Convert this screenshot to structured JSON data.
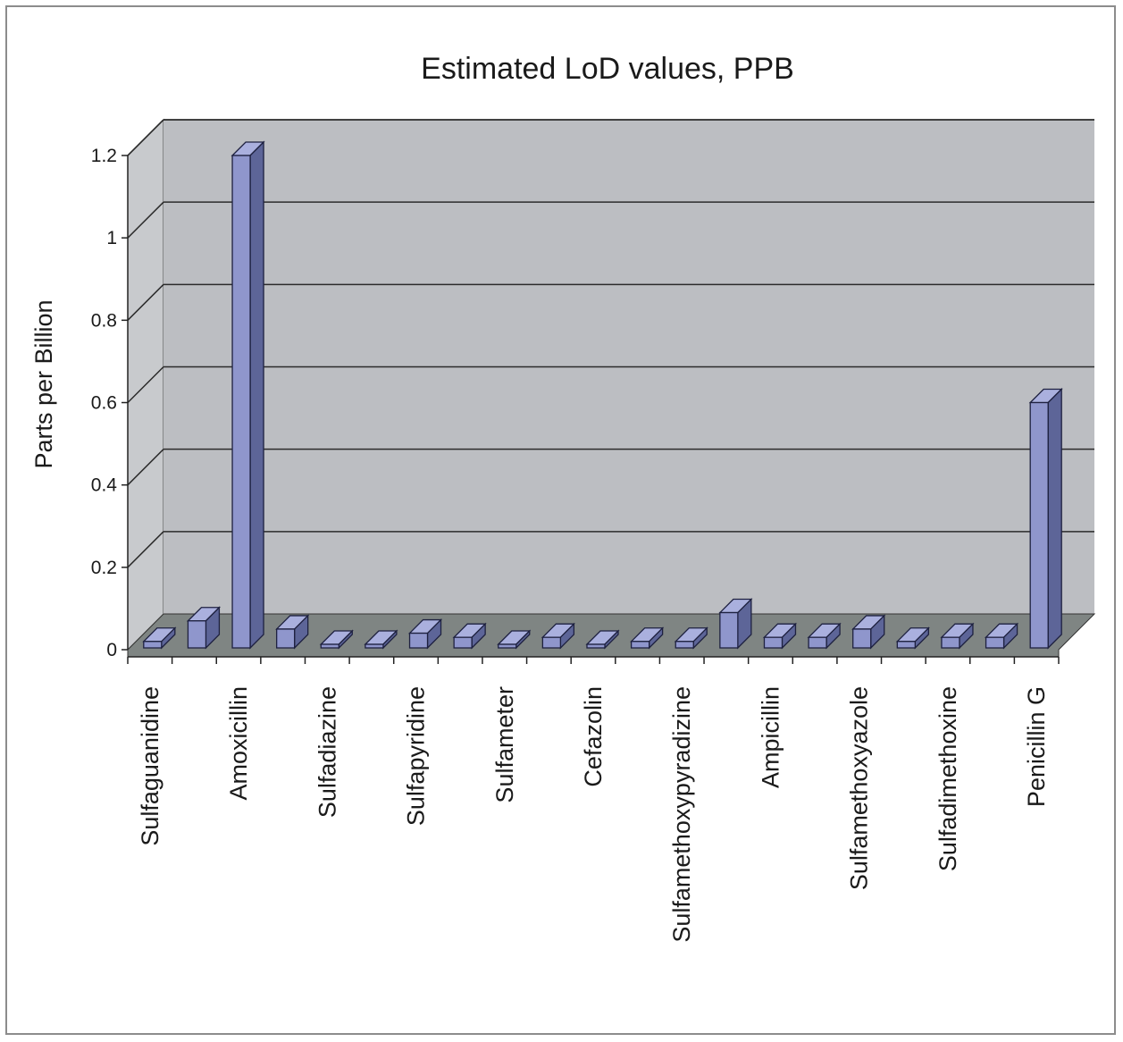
{
  "chart_data": {
    "type": "bar",
    "title": "Estimated LoD values, PPB",
    "xlabel": "",
    "ylabel": "Parts per Billion",
    "ylim": [
      0,
      1.2
    ],
    "yticks": [
      "0",
      "0.2",
      "0.4",
      "0.6",
      "0.8",
      "1",
      "1.2"
    ],
    "categories": [
      "Sulfaguanidine",
      "",
      "Amoxicillin",
      "",
      "Sulfadiazine",
      "",
      "Sulfapyridine",
      "",
      "Sulfameter",
      "",
      "Cefazolin",
      "",
      "Sulfamethoxypyradizine",
      "",
      "Ampicillin",
      "",
      "Sulfamethoxyazole",
      "",
      "Sulfadimethoxine",
      "",
      "Penicillin G"
    ],
    "values": [
      0.02,
      0.07,
      1.2,
      0.05,
      0.01,
      0.01,
      0.04,
      0.03,
      0.01,
      0.03,
      0.01,
      0.02,
      0.02,
      0.09,
      0.03,
      0.03,
      0.05,
      0.02,
      0.03,
      0.03,
      0.6
    ],
    "grid": true,
    "legend": "none",
    "style": "3d",
    "colors": {
      "bar_front": "#8f96cc",
      "bar_top": "#aab0de",
      "bar_side": "#5d6598",
      "bar_stroke": "#1e2140",
      "back_wall": "#bcbec2",
      "side_wall": "#c8cacd",
      "floor": "#7f8583",
      "gridline": "#2b2b2b"
    }
  }
}
